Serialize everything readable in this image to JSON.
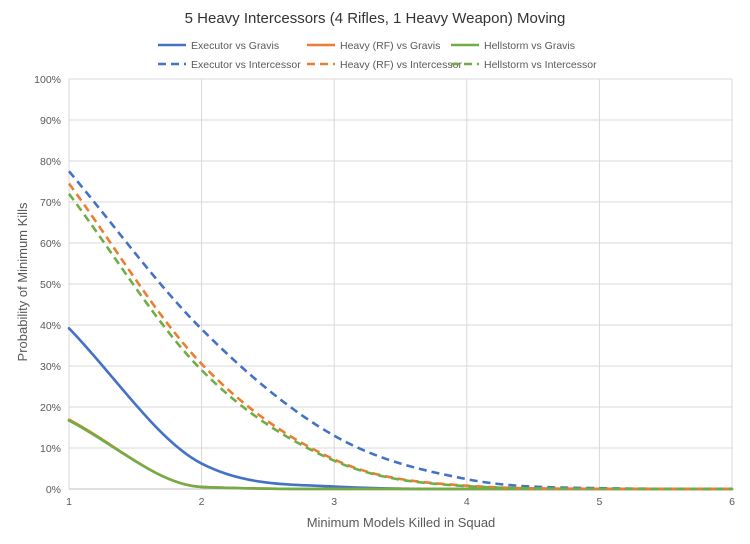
{
  "chart_data": {
    "type": "line",
    "title": "5 Heavy Intercessors (4 Rifles, 1 Heavy Weapon) Moving",
    "xlabel": "Minimum Models Killed in Squad",
    "ylabel": "Probability of Minimum Kills",
    "xlim": [
      1,
      6
    ],
    "ylim": [
      0,
      100
    ],
    "x_ticks": [
      1,
      2,
      3,
      4,
      5,
      6
    ],
    "y_ticks": [
      0,
      10,
      20,
      30,
      40,
      50,
      60,
      70,
      80,
      90,
      100
    ],
    "y_tick_suffix": "%",
    "grid": true,
    "legend_position": "top",
    "x": [
      1,
      2,
      3,
      4,
      5,
      6
    ],
    "series": [
      {
        "name": "Executor vs Gravis",
        "color": "#4472C4",
        "dash": "solid",
        "values": [
          39.2,
          6.2,
          0.6,
          0.02,
          0,
          0
        ]
      },
      {
        "name": "Heavy (RF) vs Gravis",
        "color": "#ED7D31",
        "dash": "solid",
        "values": [
          16.9,
          0.5,
          0.01,
          0,
          0,
          0
        ]
      },
      {
        "name": "Hellstorm vs Gravis",
        "color": "#70AD47",
        "dash": "solid",
        "values": [
          16.7,
          0.5,
          0.01,
          0,
          0,
          0
        ]
      },
      {
        "name": "Executor vs Intercessor",
        "color": "#4472C4",
        "dash": "dashed",
        "values": [
          77.5,
          39.0,
          13.0,
          2.4,
          0.2,
          0.01
        ]
      },
      {
        "name": "Heavy (RF) vs Intercessor",
        "color": "#ED7D31",
        "dash": "dashed",
        "values": [
          74.5,
          30.5,
          7.2,
          0.8,
          0.05,
          0
        ]
      },
      {
        "name": "Hellstorm vs Intercessor",
        "color": "#70AD47",
        "dash": "dashed",
        "values": [
          72.0,
          29.0,
          6.9,
          0.7,
          0.04,
          0
        ]
      }
    ]
  }
}
